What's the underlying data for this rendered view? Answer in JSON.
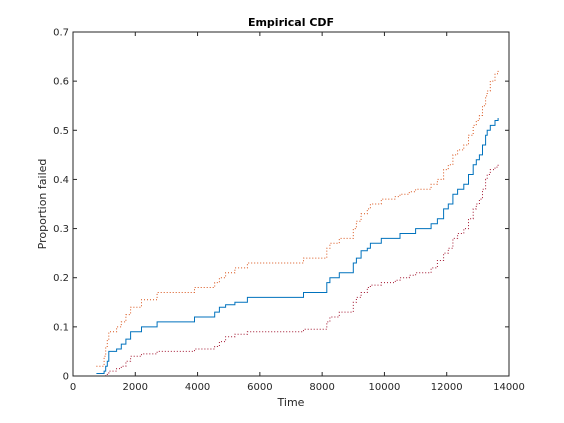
{
  "chart_data": {
    "type": "line",
    "title": "Empirical CDF",
    "xlabel": "Time",
    "ylabel": "Proportion failed",
    "xlim": [
      0,
      14000
    ],
    "ylim": [
      0,
      0.7
    ],
    "xticks": [
      0,
      2000,
      4000,
      6000,
      8000,
      10000,
      12000,
      14000
    ],
    "xtick_labels": [
      "0",
      "2000",
      "4000",
      "6000",
      "8000",
      "10000",
      "12000",
      "14000"
    ],
    "yticks": [
      0,
      0.1,
      0.2,
      0.3,
      0.4,
      0.5,
      0.6,
      0.7
    ],
    "ytick_labels": [
      "0",
      "0.1",
      "0.2",
      "0.3",
      "0.4",
      "0.5",
      "0.6",
      "0.7"
    ],
    "grid": false,
    "series": [
      {
        "style": "stairs",
        "color": "#0072BD",
        "x": [
          750,
          1000,
          1050,
          1100,
          1150,
          1400,
          1550,
          1700,
          1850,
          2200,
          2700,
          3900,
          4550,
          4700,
          4900,
          5200,
          5600,
          7400,
          8150,
          8250,
          8550,
          9000,
          9100,
          9250,
          9450,
          9550,
          9900,
          10350,
          10500,
          10800,
          11000,
          11500,
          11700,
          11900,
          12050,
          12200,
          12350,
          12550,
          12700,
          12850,
          12950,
          13050,
          13150,
          13250,
          13300,
          13400,
          13550,
          13650
        ],
        "y": [
          0.005,
          0.01,
          0.02,
          0.03,
          0.05,
          0.055,
          0.065,
          0.075,
          0.09,
          0.1,
          0.11,
          0.12,
          0.13,
          0.14,
          0.145,
          0.15,
          0.16,
          0.17,
          0.19,
          0.2,
          0.21,
          0.23,
          0.24,
          0.255,
          0.26,
          0.27,
          0.28,
          0.28,
          0.29,
          0.29,
          0.3,
          0.31,
          0.32,
          0.34,
          0.35,
          0.37,
          0.38,
          0.39,
          0.41,
          0.43,
          0.44,
          0.45,
          0.47,
          0.49,
          0.5,
          0.51,
          0.52,
          0.525
        ]
      },
      {
        "style": "dotted",
        "color": "#D95319",
        "x": [
          750,
          1000,
          1050,
          1100,
          1150,
          1400,
          1550,
          1700,
          1850,
          2200,
          2700,
          3900,
          4550,
          4700,
          4900,
          5200,
          5600,
          7400,
          8150,
          8250,
          8550,
          9000,
          9100,
          9250,
          9450,
          9550,
          9900,
          10350,
          10500,
          10800,
          11000,
          11500,
          11700,
          11900,
          12050,
          12200,
          12350,
          12550,
          12700,
          12850,
          12950,
          13050,
          13150,
          13250,
          13300,
          13400,
          13550,
          13650
        ],
        "y": [
          0.02,
          0.04,
          0.06,
          0.075,
          0.09,
          0.1,
          0.11,
          0.125,
          0.14,
          0.155,
          0.17,
          0.18,
          0.19,
          0.2,
          0.21,
          0.22,
          0.23,
          0.24,
          0.26,
          0.27,
          0.28,
          0.3,
          0.315,
          0.33,
          0.34,
          0.35,
          0.36,
          0.365,
          0.37,
          0.375,
          0.38,
          0.39,
          0.4,
          0.42,
          0.43,
          0.45,
          0.46,
          0.47,
          0.49,
          0.51,
          0.52,
          0.53,
          0.55,
          0.57,
          0.58,
          0.6,
          0.615,
          0.625
        ]
      },
      {
        "style": "dotted",
        "color": "#A2142F",
        "x": [
          750,
          1000,
          1050,
          1100,
          1150,
          1400,
          1550,
          1700,
          1850,
          2200,
          2700,
          3900,
          4550,
          4700,
          4900,
          5200,
          5600,
          7400,
          8150,
          8250,
          8550,
          9000,
          9100,
          9250,
          9450,
          9550,
          9900,
          10350,
          10500,
          10800,
          11000,
          11500,
          11700,
          11900,
          12050,
          12200,
          12350,
          12550,
          12700,
          12850,
          12950,
          13050,
          13150,
          13250,
          13300,
          13400,
          13550,
          13650
        ],
        "y": [
          0.0,
          0.0,
          0.003,
          0.006,
          0.01,
          0.015,
          0.02,
          0.03,
          0.04,
          0.045,
          0.05,
          0.055,
          0.06,
          0.07,
          0.08,
          0.085,
          0.09,
          0.095,
          0.11,
          0.12,
          0.13,
          0.15,
          0.16,
          0.17,
          0.18,
          0.185,
          0.19,
          0.195,
          0.2,
          0.205,
          0.21,
          0.22,
          0.235,
          0.25,
          0.26,
          0.28,
          0.29,
          0.3,
          0.32,
          0.34,
          0.35,
          0.36,
          0.38,
          0.4,
          0.41,
          0.42,
          0.425,
          0.43
        ]
      }
    ]
  }
}
